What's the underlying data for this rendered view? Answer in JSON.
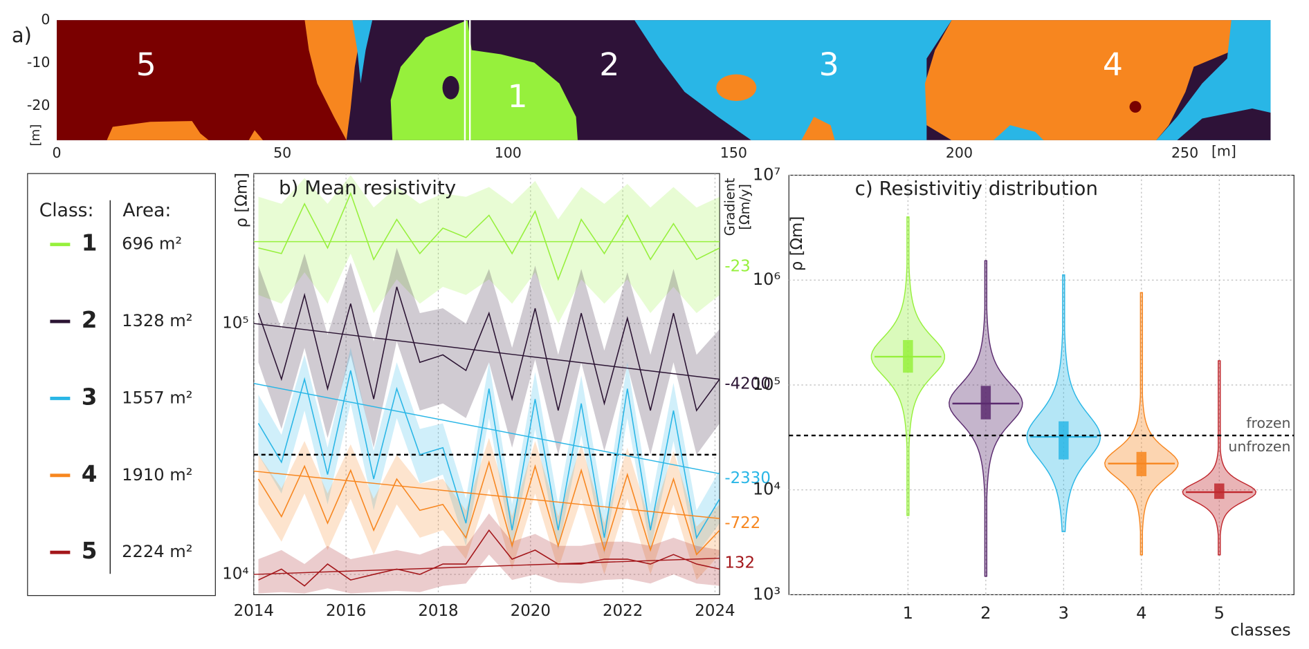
{
  "chart_data": [
    {
      "type": "map",
      "label": "a)",
      "xlim": [
        0,
        269
      ],
      "ylim": [
        -28,
        0
      ],
      "xticks": [
        0,
        50,
        100,
        150,
        200,
        250
      ],
      "yticks": [
        0,
        -10,
        -20
      ],
      "xlabel": "[m]",
      "ylabel": "[m]",
      "section_marker": 91,
      "region_labels": [
        "5",
        "2",
        "1",
        "3",
        "4"
      ]
    },
    {
      "type": "line",
      "title": "b) Mean resistivity",
      "ylabel": "ρ [Ωm]",
      "y2label": [
        "Gradient",
        "[Ωm/y]"
      ],
      "log_y": true,
      "grid": true,
      "x": [
        2014.1,
        2014.6,
        2015.1,
        2015.6,
        2016.1,
        2016.6,
        2017.1,
        2017.6,
        2018.1,
        2018.6,
        2019.1,
        2019.6,
        2020.1,
        2020.6,
        2021.1,
        2021.6,
        2022.1,
        2022.6,
        2023.1,
        2023.6,
        2024.1
      ],
      "xlim": [
        2014,
        2024.1
      ],
      "ylim": [
        8300,
        396000
      ],
      "xticks": [
        2014,
        2016,
        2018,
        2020,
        2022,
        2024
      ],
      "yticks": [
        {
          "value": 10000,
          "label": "10⁴"
        },
        {
          "value": 100000,
          "label": "10⁵"
        }
      ],
      "threshold": 30000,
      "legend": {
        "class_header": "Class:",
        "area_header": "Area:"
      },
      "trend_x": [
        2014,
        2024.1
      ],
      "series": [
        {
          "name": "1",
          "color": "#96f03c",
          "area": "696 m²",
          "gradient": -23,
          "trend": [
            212000,
            212000
          ],
          "values": [
            200000,
            190000,
            300000,
            200000,
            330000,
            180000,
            260000,
            190000,
            240000,
            220000,
            270000,
            190000,
            280000,
            150000,
            260000,
            190000,
            270000,
            180000,
            250000,
            180000,
            200000
          ],
          "lower": [
            130000,
            120000,
            160000,
            120000,
            190000,
            110000,
            150000,
            120000,
            140000,
            130000,
            150000,
            120000,
            160000,
            100000,
            150000,
            120000,
            150000,
            110000,
            140000,
            110000,
            130000
          ],
          "upper": [
            320000,
            300000,
            380000,
            300000,
            390000,
            290000,
            350000,
            300000,
            330000,
            320000,
            350000,
            300000,
            370000,
            260000,
            350000,
            300000,
            360000,
            290000,
            350000,
            290000,
            320000
          ]
        },
        {
          "name": "2",
          "color": "#2b1433",
          "area": "1328 m²",
          "gradient": -4200,
          "trend": [
            100000,
            60000
          ],
          "values": [
            110000,
            60000,
            130000,
            55000,
            120000,
            50000,
            140000,
            70000,
            75000,
            65000,
            110000,
            50000,
            115000,
            45000,
            110000,
            48000,
            105000,
            45000,
            110000,
            45000,
            60000
          ],
          "lower": [
            70000,
            38000,
            80000,
            35000,
            75000,
            32000,
            85000,
            45000,
            48000,
            42000,
            70000,
            32000,
            72000,
            30000,
            70000,
            31000,
            68000,
            30000,
            70000,
            30000,
            40000
          ],
          "upper": [
            170000,
            95000,
            190000,
            90000,
            175000,
            85000,
            200000,
            110000,
            115000,
            100000,
            165000,
            80000,
            170000,
            75000,
            165000,
            78000,
            160000,
            75000,
            165000,
            75000,
            95000
          ]
        },
        {
          "name": "3",
          "color": "#29b6e6",
          "area": "1557 m²",
          "gradient": -2330,
          "trend": [
            57700,
            25200
          ],
          "values": [
            40000,
            28000,
            60000,
            25000,
            65000,
            24000,
            55000,
            30000,
            32000,
            16000,
            55000,
            15000,
            50000,
            15000,
            48000,
            14000,
            55000,
            15000,
            45000,
            14000,
            20000
          ],
          "lower": [
            30000,
            21000,
            45000,
            19000,
            48000,
            18000,
            42000,
            23000,
            25000,
            13000,
            42000,
            12500,
            38000,
            12500,
            36000,
            12000,
            42000,
            12500,
            34000,
            12000,
            16000
          ],
          "upper": [
            52000,
            36000,
            75000,
            32000,
            80000,
            31000,
            70000,
            38000,
            40000,
            20000,
            70000,
            19000,
            64000,
            19000,
            62000,
            18000,
            70000,
            19000,
            58000,
            18000,
            26000
          ]
        },
        {
          "name": "4",
          "color": "#f7861f",
          "area": "1910 m²",
          "gradient": -722,
          "trend": [
            25800,
            16700
          ],
          "values": [
            24000,
            17000,
            27000,
            16000,
            26000,
            15000,
            24000,
            18000,
            19000,
            14000,
            28000,
            13000,
            27000,
            13000,
            26000,
            12500,
            25000,
            12500,
            24000,
            12000,
            15000
          ],
          "lower": [
            19000,
            13500,
            21000,
            12500,
            20000,
            12000,
            19000,
            14000,
            15000,
            11500,
            22000,
            10500,
            21000,
            10500,
            20000,
            10000,
            20000,
            10000,
            19000,
            9500,
            12000
          ],
          "upper": [
            30000,
            22000,
            34000,
            21000,
            33000,
            20000,
            30000,
            23000,
            24000,
            18000,
            35000,
            17000,
            34000,
            17000,
            33000,
            16000,
            32000,
            16000,
            31000,
            15500,
            19000
          ]
        },
        {
          "name": "5",
          "color": "#a3161a",
          "area": "2224 m²",
          "gradient": 132,
          "trend": [
            10000,
            11600
          ],
          "values": [
            9500,
            10500,
            9000,
            11000,
            9500,
            10000,
            10500,
            10000,
            11000,
            11000,
            15000,
            11500,
            12500,
            11000,
            11000,
            11500,
            11500,
            11000,
            12000,
            11000,
            10500
          ],
          "lower": [
            8400,
            8500,
            8400,
            8800,
            8400,
            8500,
            8600,
            8500,
            9000,
            9200,
            12000,
            9500,
            10000,
            9300,
            9200,
            9500,
            9600,
            9200,
            10000,
            9200,
            9000
          ],
          "upper": [
            11500,
            12500,
            11000,
            13000,
            11500,
            12000,
            12500,
            12000,
            13000,
            13000,
            17500,
            13500,
            14500,
            13000,
            13000,
            13500,
            13500,
            13000,
            14000,
            13000,
            12500
          ]
        }
      ]
    },
    {
      "type": "violin",
      "title": "c) Resistivitiy distribution",
      "ylabel": "ρ [Ωm]",
      "xlabel": "classes",
      "log_y": true,
      "grid": true,
      "ylim": [
        1000,
        10000000
      ],
      "yticks": [
        {
          "value": 1000,
          "label": "10³"
        },
        {
          "value": 10000,
          "label": "10⁴"
        },
        {
          "value": 100000,
          "label": "10⁵"
        },
        {
          "value": 1000000,
          "label": "10⁶"
        },
        {
          "value": 10000000,
          "label": "10⁷"
        }
      ],
      "xlim": [
        -0.53,
        5.96
      ],
      "xticks": [
        1,
        2,
        3,
        4,
        5
      ],
      "threshold": 33000,
      "threshold_labels": [
        "frozen",
        "unfrozen"
      ],
      "violins": [
        {
          "x": 1,
          "color": "#96f03c",
          "min": 5700,
          "q1": 131000,
          "median": 186000,
          "q3": 268000,
          "max": 4000000
        },
        {
          "x": 2,
          "color": "#5a2a6e",
          "min": 1500,
          "q1": 47000,
          "median": 66500,
          "q3": 98000,
          "max": 1530000
        },
        {
          "x": 3,
          "color": "#29b6e6",
          "min": 4000,
          "q1": 19500,
          "median": 32000,
          "q3": 45000,
          "max": 1120000
        },
        {
          "x": 4,
          "color": "#f7861f",
          "min": 2400,
          "q1": 13500,
          "median": 17800,
          "q3": 23000,
          "max": 760000
        },
        {
          "x": 5,
          "color": "#c0272d",
          "min": 2400,
          "q1": 8200,
          "median": 9500,
          "q3": 11500,
          "max": 170000
        }
      ]
    }
  ]
}
